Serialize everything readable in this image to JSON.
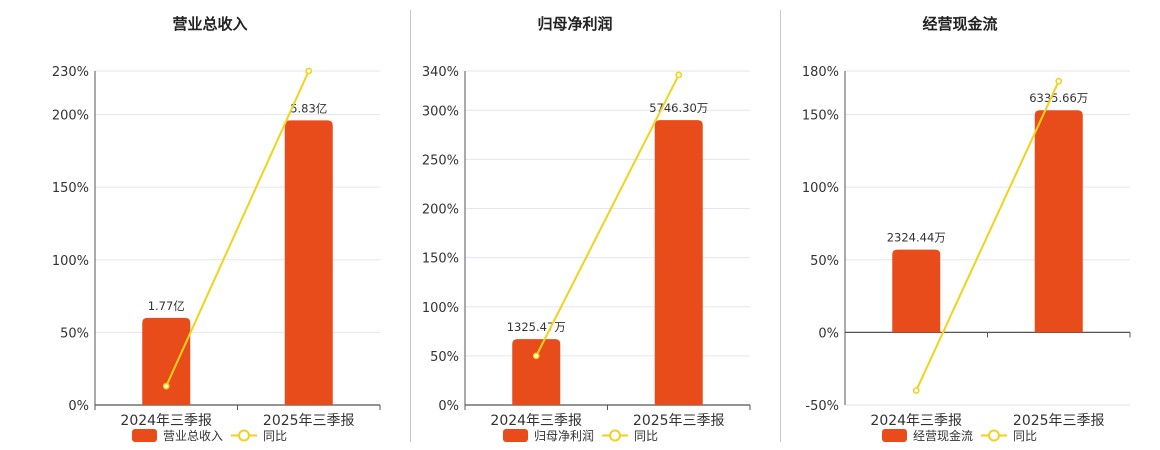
{
  "colors": {
    "bar": "#e84c1a",
    "line": "#f2d21b",
    "grid": "#e3e6f0",
    "axis": "#555555"
  },
  "legend_line_label": "同比",
  "chart_data": [
    {
      "type": "bar",
      "title": "营业总收入",
      "categories": [
        "2024年三季报",
        "2025年三季报"
      ],
      "series": [
        {
          "name": "营业总收入",
          "type": "bar",
          "values": [
            60,
            196
          ],
          "labels": [
            "1.77亿",
            "5.83亿"
          ]
        },
        {
          "name": "同比",
          "type": "line",
          "values": [
            13,
            230
          ]
        }
      ],
      "ylim": [
        0,
        230
      ],
      "yticks": [
        0,
        50,
        100,
        150,
        200,
        230
      ],
      "ytick_labels": [
        "0%",
        "50%",
        "100%",
        "150%",
        "200%",
        "230%"
      ],
      "grid": true
    },
    {
      "type": "bar",
      "title": "归母净利润",
      "categories": [
        "2024年三季报",
        "2025年三季报"
      ],
      "series": [
        {
          "name": "归母净利润",
          "type": "bar",
          "values": [
            67,
            290
          ],
          "labels": [
            "1325.47万",
            "5746.30万"
          ]
        },
        {
          "name": "同比",
          "type": "line",
          "values": [
            50,
            336
          ]
        }
      ],
      "ylim": [
        0,
        340
      ],
      "yticks": [
        0,
        50,
        100,
        150,
        200,
        250,
        300,
        340
      ],
      "ytick_labels": [
        "0%",
        "50%",
        "100%",
        "150%",
        "200%",
        "250%",
        "300%",
        "340%"
      ],
      "grid": true
    },
    {
      "type": "bar",
      "title": "经营现金流",
      "categories": [
        "2024年三季报",
        "2025年三季报"
      ],
      "series": [
        {
          "name": "经营现金流",
          "type": "bar",
          "values": [
            57,
            153
          ],
          "labels": [
            "2324.44万",
            "6335.66万"
          ]
        },
        {
          "name": "同比",
          "type": "line",
          "values": [
            -40,
            173
          ]
        }
      ],
      "ylim": [
        -50,
        180
      ],
      "yticks": [
        -50,
        0,
        50,
        100,
        150,
        180
      ],
      "ytick_labels": [
        "-50%",
        "0%",
        "50%",
        "100%",
        "150%",
        "180%"
      ],
      "grid": true
    }
  ]
}
